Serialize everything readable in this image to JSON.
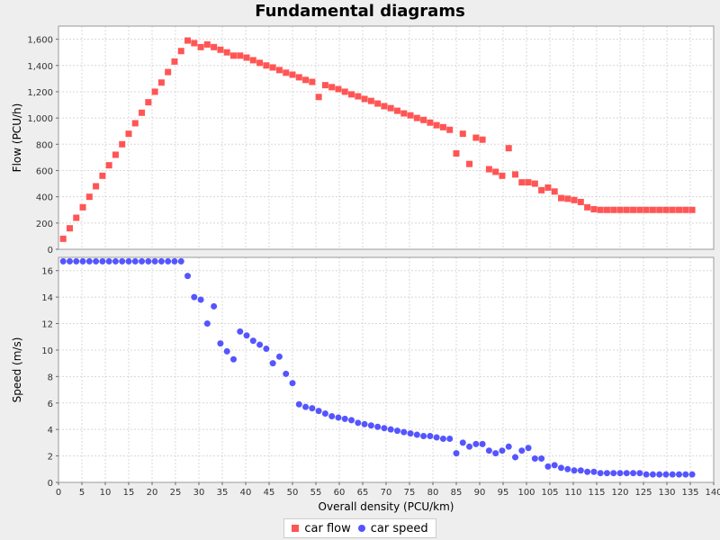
{
  "chart_data": {
    "type": "scatter",
    "title": "Fundamental diagrams",
    "xlabel": "Overall density (PCU/km)",
    "xlim": [
      0,
      140
    ],
    "x_ticks": [
      0,
      5,
      10,
      15,
      20,
      25,
      30,
      35,
      40,
      45,
      50,
      55,
      60,
      65,
      70,
      75,
      80,
      85,
      90,
      95,
      100,
      105,
      110,
      115,
      120,
      125,
      130,
      135,
      140
    ],
    "grid": true,
    "legend_position": "bottom-center",
    "subplots": [
      {
        "ylabel": "Flow (PCU/h)",
        "ylim": [
          0,
          1700
        ],
        "y_ticks": [
          0,
          200,
          400,
          600,
          800,
          1000,
          1200,
          1400,
          1600
        ],
        "y_tick_labels": [
          "0",
          "200",
          "400",
          "600",
          "800",
          "1,000",
          "1,200",
          "1,400",
          "1,600"
        ],
        "series": [
          {
            "name": "car flow",
            "marker": "square",
            "color": "#ff5555",
            "x": [
              1.0,
              2.4,
              3.8,
              5.2,
              6.6,
              8.0,
              9.4,
              10.8,
              12.2,
              13.6,
              15.0,
              16.4,
              17.8,
              19.2,
              20.6,
              22.0,
              23.4,
              24.8,
              26.2,
              27.6,
              29.0,
              30.4,
              31.8,
              33.2,
              34.6,
              36.0,
              37.4,
              38.8,
              40.2,
              41.6,
              43.0,
              44.4,
              45.8,
              47.2,
              48.6,
              50.0,
              51.4,
              52.8,
              54.2,
              55.6,
              57.0,
              58.4,
              59.8,
              61.2,
              62.6,
              64.0,
              65.4,
              66.8,
              68.2,
              69.6,
              71.0,
              72.4,
              73.8,
              75.2,
              76.6,
              78.0,
              79.4,
              80.8,
              82.2,
              83.6,
              85.0,
              86.4,
              87.8,
              89.2,
              90.6,
              92.0,
              93.4,
              94.8,
              96.2,
              97.6,
              99.0,
              100.4,
              101.8,
              103.2,
              104.6,
              106.0,
              107.4,
              108.8,
              110.2,
              111.6,
              113.0,
              114.4,
              115.8,
              117.2,
              118.6,
              120.0,
              121.4,
              122.8,
              124.2,
              125.6,
              127.0,
              128.4,
              129.8,
              131.2,
              132.6,
              134.0,
              135.4
            ],
            "y": [
              80,
              160,
              240,
              320,
              400,
              480,
              560,
              640,
              720,
              800,
              880,
              960,
              1040,
              1120,
              1200,
              1270,
              1350,
              1430,
              1510,
              1590,
              1570,
              1540,
              1560,
              1540,
              1520,
              1500,
              1475,
              1475,
              1460,
              1440,
              1420,
              1400,
              1385,
              1365,
              1345,
              1330,
              1310,
              1290,
              1275,
              1160,
              1250,
              1235,
              1220,
              1200,
              1180,
              1165,
              1145,
              1130,
              1110,
              1090,
              1075,
              1055,
              1035,
              1020,
              1000,
              985,
              965,
              945,
              930,
              910,
              730,
              880,
              650,
              850,
              835,
              610,
              590,
              560,
              770,
              570,
              510,
              510,
              500,
              450,
              470,
              440,
              390,
              385,
              375,
              360,
              320,
              305,
              300,
              300,
              300,
              300,
              300,
              300,
              300,
              300,
              300,
              300,
              300,
              300,
              300,
              300,
              300
            ]
          }
        ]
      },
      {
        "ylabel": "Speed (m/s)",
        "ylim": [
          0,
          17
        ],
        "y_ticks": [
          0,
          2,
          4,
          6,
          8,
          10,
          12,
          14,
          16
        ],
        "y_tick_labels": [
          "0",
          "2",
          "4",
          "6",
          "8",
          "10",
          "12",
          "14",
          "16"
        ],
        "series": [
          {
            "name": "car speed",
            "marker": "circle",
            "color": "#5555ff",
            "x": [
              1.0,
              2.4,
              3.8,
              5.2,
              6.6,
              8.0,
              9.4,
              10.8,
              12.2,
              13.6,
              15.0,
              16.4,
              17.8,
              19.2,
              20.6,
              22.0,
              23.4,
              24.8,
              26.2,
              27.6,
              29.0,
              30.4,
              31.8,
              33.2,
              34.6,
              36.0,
              37.4,
              38.8,
              40.2,
              41.6,
              43.0,
              44.4,
              45.8,
              47.2,
              48.6,
              50.0,
              51.4,
              52.8,
              54.2,
              55.6,
              57.0,
              58.4,
              59.8,
              61.2,
              62.6,
              64.0,
              65.4,
              66.8,
              68.2,
              69.6,
              71.0,
              72.4,
              73.8,
              75.2,
              76.6,
              78.0,
              79.4,
              80.8,
              82.2,
              83.6,
              85.0,
              86.4,
              87.8,
              89.2,
              90.6,
              92.0,
              93.4,
              94.8,
              96.2,
              97.6,
              99.0,
              100.4,
              101.8,
              103.2,
              104.6,
              106.0,
              107.4,
              108.8,
              110.2,
              111.6,
              113.0,
              114.4,
              115.8,
              117.2,
              118.6,
              120.0,
              121.4,
              122.8,
              124.2,
              125.6,
              127.0,
              128.4,
              129.8,
              131.2,
              132.6,
              134.0,
              135.4
            ],
            "y": [
              16.7,
              16.7,
              16.7,
              16.7,
              16.7,
              16.7,
              16.7,
              16.7,
              16.7,
              16.7,
              16.7,
              16.7,
              16.7,
              16.7,
              16.7,
              16.7,
              16.7,
              16.7,
              16.7,
              15.6,
              14.0,
              13.8,
              12.0,
              13.3,
              10.5,
              9.9,
              9.3,
              11.4,
              11.1,
              10.7,
              10.4,
              10.1,
              9.0,
              9.5,
              8.2,
              7.5,
              5.9,
              5.7,
              5.6,
              5.4,
              5.2,
              5.0,
              4.9,
              4.8,
              4.7,
              4.5,
              4.4,
              4.3,
              4.2,
              4.1,
              4.0,
              3.9,
              3.8,
              3.7,
              3.6,
              3.5,
              3.5,
              3.4,
              3.3,
              3.3,
              2.2,
              3.0,
              2.7,
              2.9,
              2.9,
              2.4,
              2.2,
              2.4,
              2.7,
              1.9,
              2.4,
              2.6,
              1.8,
              1.8,
              1.2,
              1.3,
              1.1,
              1.0,
              0.9,
              0.9,
              0.8,
              0.8,
              0.7,
              0.7,
              0.7,
              0.7,
              0.7,
              0.7,
              0.7,
              0.6,
              0.6,
              0.6,
              0.6,
              0.6,
              0.6,
              0.6,
              0.6
            ]
          }
        ]
      }
    ]
  }
}
